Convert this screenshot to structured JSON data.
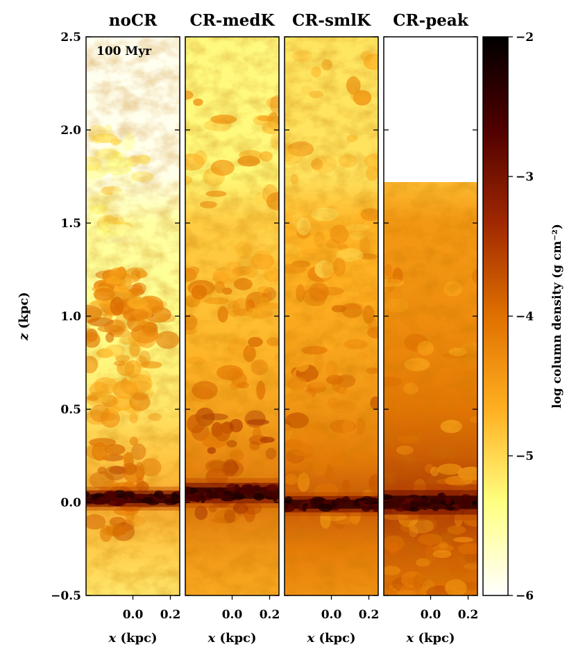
{
  "figure": {
    "time_annotation": "100 Myr",
    "y_axis_label_var": "z",
    "y_axis_label_unit": "(kpc)",
    "x_axis_label_var": "x",
    "x_axis_label_unit": "(kpc)",
    "colorbar_label": "log column density (g cm⁻²)"
  },
  "chart_data": {
    "type": "heatmap",
    "ylim": [
      -0.5,
      2.5
    ],
    "yticks": [
      "−0.5",
      "0.0",
      "0.5",
      "1.0",
      "1.5",
      "2.0",
      "2.5"
    ],
    "ytick_values": [
      -0.5,
      0.0,
      0.5,
      1.0,
      1.5,
      2.0,
      2.5
    ],
    "xlim": [
      -0.25,
      0.25
    ],
    "xticks": [
      "0.0",
      "0.2"
    ],
    "xtick_values": [
      0.0,
      0.2
    ],
    "colorbar": {
      "range": [
        -6,
        -2
      ],
      "ticks": [
        "−6",
        "−5",
        "−4",
        "−3",
        "−2"
      ],
      "tick_values": [
        -6,
        -5,
        -4,
        -3,
        -2
      ],
      "colormap": "afmhot_r",
      "colors": [
        "#ffffff",
        "#ffff80",
        "#ffb020",
        "#e07000",
        "#a02800",
        "#500000",
        "#000000"
      ]
    },
    "panels": [
      {
        "name": "noCR",
        "disk_z": 0.02,
        "disk_thickness": 0.04,
        "background_level": -5.6,
        "features": [
          {
            "z": 0.08,
            "level": -4.0,
            "extent": 0.25,
            "spread": 0.5
          },
          {
            "z": 0.65,
            "level": -4.6,
            "extent": 0.2,
            "spread": 0.6
          },
          {
            "z": 0.97,
            "level": -4.2,
            "extent": 0.1,
            "spread": 0.9
          },
          {
            "z": 1.12,
            "level": -4.3,
            "extent": 0.12,
            "spread": 0.4
          },
          {
            "z": 1.7,
            "level": -5.3,
            "extent": 0.3,
            "spread": 0.4
          }
        ]
      },
      {
        "name": "CR-medK",
        "disk_z": 0.05,
        "disk_thickness": 0.05,
        "background_level": -5.0,
        "features": [
          {
            "z": 0.2,
            "level": -3.6,
            "extent": 0.3,
            "spread": 0.9
          },
          {
            "z": 0.9,
            "level": -4.2,
            "extent": 0.35,
            "spread": 0.9
          },
          {
            "z": 1.6,
            "level": -4.6,
            "extent": 0.6,
            "spread": 1.0
          }
        ]
      },
      {
        "name": "CR-smlK",
        "disk_z": -0.01,
        "disk_thickness": 0.04,
        "background_level": -4.8,
        "features": [
          {
            "z": 0.3,
            "level": -4.1,
            "extent": 0.4,
            "spread": 1.0
          },
          {
            "z": 1.0,
            "level": -4.3,
            "extent": 0.45,
            "spread": 1.0
          },
          {
            "z": 1.8,
            "level": -4.7,
            "extent": 0.6,
            "spread": 1.0
          }
        ]
      },
      {
        "name": "CR-peak",
        "disk_z": 0.0,
        "disk_thickness": 0.06,
        "background_level": -4.5,
        "top_z": 1.72,
        "features": [
          {
            "z": -0.3,
            "level": -4.0,
            "extent": 0.25,
            "spread": 1.0
          },
          {
            "z": 0.6,
            "level": -4.3,
            "extent": 0.8,
            "spread": 1.0
          }
        ]
      }
    ]
  }
}
